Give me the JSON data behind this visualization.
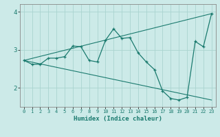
{
  "title": "",
  "xlabel": "Humidex (Indice chaleur)",
  "ylabel": "",
  "bg_color": "#cceae8",
  "line_color": "#1a7a6e",
  "grid_color": "#aad4d0",
  "xlim": [
    -0.5,
    23.5
  ],
  "ylim": [
    1.5,
    4.2
  ],
  "yticks": [
    2,
    3,
    4
  ],
  "xticks": [
    0,
    1,
    2,
    3,
    4,
    5,
    6,
    7,
    8,
    9,
    10,
    11,
    12,
    13,
    14,
    15,
    16,
    17,
    18,
    19,
    20,
    21,
    22,
    23
  ],
  "series": [
    {
      "x": [
        0,
        1,
        2,
        3,
        4,
        5,
        6,
        7,
        8,
        9,
        10,
        11,
        12,
        13,
        14,
        15,
        16,
        17,
        18,
        19,
        20,
        21,
        22,
        23
      ],
      "y": [
        2.72,
        2.62,
        2.62,
        2.78,
        2.78,
        2.82,
        3.1,
        3.08,
        2.72,
        2.68,
        3.25,
        3.55,
        3.3,
        3.32,
        2.92,
        2.68,
        2.48,
        1.92,
        1.72,
        1.68,
        1.75,
        3.22,
        3.08,
        3.95
      ]
    },
    {
      "x": [
        0,
        23
      ],
      "y": [
        2.72,
        3.95
      ]
    },
    {
      "x": [
        0,
        23
      ],
      "y": [
        2.72,
        1.68
      ]
    }
  ]
}
